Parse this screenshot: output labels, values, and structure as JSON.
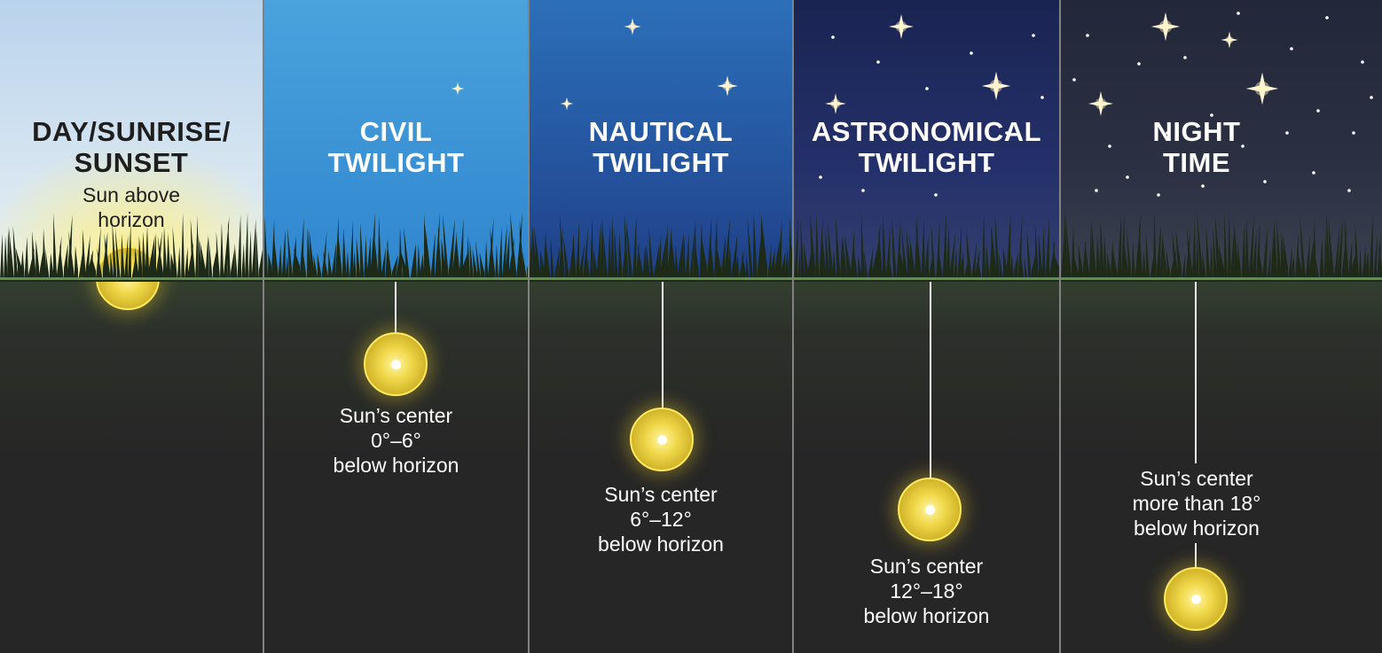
{
  "panels": [
    {
      "id": "day",
      "title_line1": "DAY/SUNRISE/",
      "title_line2": "SUNSET",
      "desc_line1": "Sun above",
      "desc_line2": "horizon",
      "desc_line3": "",
      "sky_top": "#b9d3ec",
      "sky_bottom": "#e9f1f4",
      "title_color": "#1e1e1e"
    },
    {
      "id": "civil",
      "title_line1": "CIVIL",
      "title_line2": "TWILIGHT",
      "desc_line1": "Sun’s center",
      "desc_line2": "0°–6°",
      "desc_line3": "below horizon",
      "sky_top": "#3f9ad8",
      "sky_bottom": "#2f86cf",
      "title_color": "#ffffff"
    },
    {
      "id": "nautical",
      "title_line1": "NAUTICAL",
      "title_line2": "TWILIGHT",
      "desc_line1": "Sun’s center",
      "desc_line2": "6°–12°",
      "desc_line3": "below horizon",
      "sky_top": "#2c6fb9",
      "sky_bottom": "#1f3f86",
      "title_color": "#ffffff"
    },
    {
      "id": "astronomical",
      "title_line1": "ASTRONOMICAL",
      "title_line2": "TWILIGHT",
      "desc_line1": "Sun’s center",
      "desc_line2": "12°–18°",
      "desc_line3": "below horizon",
      "sky_top": "#1d2a5c",
      "sky_bottom": "#2b3a72",
      "title_color": "#ffffff"
    },
    {
      "id": "night",
      "title_line1": "NIGHT",
      "title_line2": "TIME",
      "desc_line1": "Sun’s center",
      "desc_line2": "more than 18°",
      "desc_line3": "below horizon",
      "sky_top": "#24283a",
      "sky_bottom": "#3a3f50",
      "title_color": "#ffffff"
    }
  ],
  "colors": {
    "ground": "#262626",
    "horizon": "#5f8f4e",
    "sun": "#f1d94c",
    "sun_rim": "#ffe95e",
    "divider": "#cdcdcd"
  }
}
